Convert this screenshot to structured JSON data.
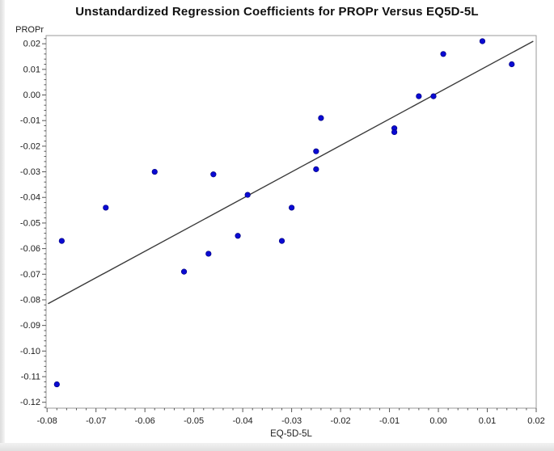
{
  "title": "Unstandardized Regression Coefficients for PROPr Versus EQ5D-5L",
  "chart_data": {
    "type": "scatter",
    "title": "Unstandardized Regression Coefficients for PROPr Versus EQ5D-5L",
    "xlabel": "EQ-5D-5L",
    "ylabel": "PROPr",
    "xlim": [
      -0.0802,
      0.02
    ],
    "ylim": [
      -0.1223,
      0.0232
    ],
    "x_ticks": [
      -0.08,
      -0.07,
      -0.06,
      -0.05,
      -0.04,
      -0.03,
      -0.02,
      -0.01,
      0.0,
      0.01,
      0.02
    ],
    "y_ticks": [
      0.02,
      0.01,
      0.0,
      -0.01,
      -0.02,
      -0.03,
      -0.04,
      -0.05,
      -0.06,
      -0.07,
      -0.08,
      -0.09,
      -0.1,
      -0.11,
      -0.12
    ],
    "minor_tick_step": 0.002,
    "grid": false,
    "legend": null,
    "points": [
      [
        -0.078,
        -0.113
      ],
      [
        -0.077,
        -0.057
      ],
      [
        -0.068,
        -0.044
      ],
      [
        -0.058,
        -0.03
      ],
      [
        -0.052,
        -0.069
      ],
      [
        -0.047,
        -0.062
      ],
      [
        -0.046,
        -0.031
      ],
      [
        -0.041,
        -0.055
      ],
      [
        -0.039,
        -0.039
      ],
      [
        -0.032,
        -0.057
      ],
      [
        -0.03,
        -0.044
      ],
      [
        -0.025,
        -0.022
      ],
      [
        -0.025,
        -0.029
      ],
      [
        -0.024,
        -0.009
      ],
      [
        -0.009,
        -0.013
      ],
      [
        -0.009,
        -0.0145
      ],
      [
        -0.004,
        -0.0005
      ],
      [
        -0.001,
        -0.0005
      ],
      [
        0.001,
        0.016
      ],
      [
        0.009,
        0.021
      ],
      [
        0.015,
        0.012
      ]
    ],
    "regression_line": {
      "x1": -0.0798,
      "y1": -0.0815,
      "x2": 0.0194,
      "y2": 0.021
    },
    "point_color": "#0a0ad2",
    "line_color": "#3a3a3a",
    "frame_color": "#9a9a9a",
    "tick_color": "#555555",
    "label_color": "#1c1c1c"
  }
}
